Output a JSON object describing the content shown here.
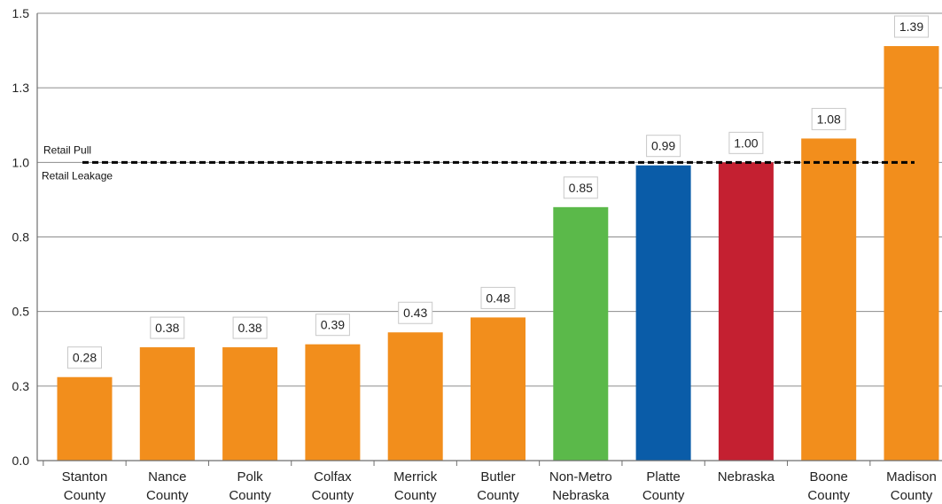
{
  "chart_data": {
    "type": "bar",
    "title": "",
    "xlabel": "",
    "ylabel": "",
    "ylim": [
      0,
      1.5
    ],
    "y_ticks": [
      {
        "value": 0.0,
        "label": "0.0"
      },
      {
        "value": 0.25,
        "label": "0.3"
      },
      {
        "value": 0.5,
        "label": "0.5"
      },
      {
        "value": 0.75,
        "label": "0.8"
      },
      {
        "value": 1.0,
        "label": "1.0"
      },
      {
        "value": 1.25,
        "label": "1.3"
      },
      {
        "value": 1.5,
        "label": "1.5"
      }
    ],
    "grid": true,
    "categories": [
      [
        "Stanton",
        "County"
      ],
      [
        "Nance",
        "County"
      ],
      [
        "Polk",
        "County"
      ],
      [
        "Colfax",
        "County"
      ],
      [
        "Merrick",
        "County"
      ],
      [
        "Butler",
        "County"
      ],
      [
        "Non-Metro",
        "Nebraska"
      ],
      [
        "Platte",
        "County"
      ],
      [
        "Nebraska"
      ],
      [
        "Boone",
        "County"
      ],
      [
        "Madison",
        "County"
      ]
    ],
    "values": [
      0.28,
      0.38,
      0.38,
      0.39,
      0.43,
      0.48,
      0.85,
      0.99,
      1.0,
      1.08,
      1.39
    ],
    "value_labels": [
      "0.28",
      "0.38",
      "0.38",
      "0.39",
      "0.43",
      "0.48",
      "0.85",
      "0.99",
      "1.00",
      "1.08",
      "1.39"
    ],
    "colors": [
      "#F28E1C",
      "#F28E1C",
      "#F28E1C",
      "#F28E1C",
      "#F28E1C",
      "#F28E1C",
      "#5BB94A",
      "#0A5CA8",
      "#C42031",
      "#F28E1C",
      "#F28E1C"
    ],
    "reference_line": {
      "value": 1.0,
      "label_above": "Retail Pull",
      "label_below": "Retail Leakage",
      "style": "dashed",
      "color": "#000000"
    }
  }
}
